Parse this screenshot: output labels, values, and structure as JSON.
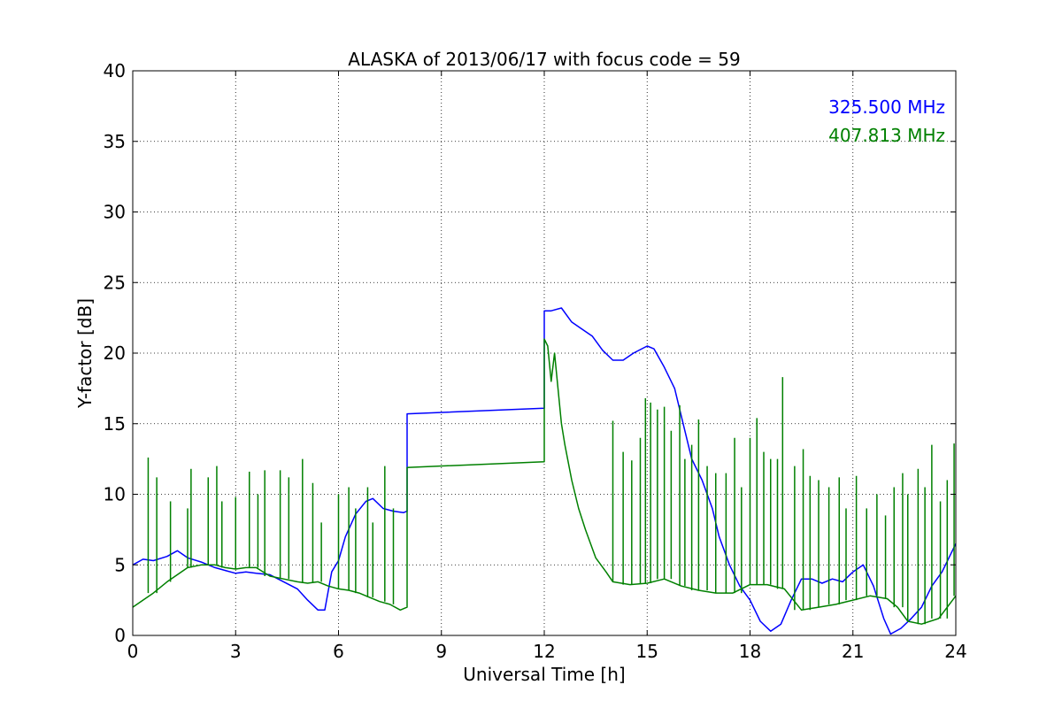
{
  "chart_data": {
    "type": "line",
    "title": "ALASKA of 2013/06/17 with focus code = 59",
    "xlabel": "Universal Time [h]",
    "ylabel": "Y-factor [dB]",
    "xlim": [
      0,
      24
    ],
    "ylim": [
      0,
      40
    ],
    "xticks": [
      0,
      3,
      6,
      9,
      12,
      15,
      18,
      21,
      24
    ],
    "yticks": [
      0,
      5,
      10,
      15,
      20,
      25,
      30,
      35,
      40
    ],
    "grid": true,
    "legend_placement": "top-right",
    "series": [
      {
        "name": "325.500 MHz",
        "color": "#0000ff",
        "x": [
          0,
          0.3,
          0.6,
          1.0,
          1.3,
          1.6,
          2.0,
          2.4,
          2.7,
          3.0,
          3.3,
          3.6,
          4.0,
          4.4,
          4.8,
          5.1,
          5.4,
          5.6,
          5.8,
          6.0,
          6.2,
          6.5,
          6.8,
          7.0,
          7.3,
          7.6,
          7.9,
          8.0,
          8.0,
          12.0,
          12.0,
          12.2,
          12.5,
          12.8,
          13.1,
          13.4,
          13.7,
          14.0,
          14.3,
          14.6,
          15.0,
          15.2,
          15.5,
          15.8,
          16.0,
          16.3,
          16.6,
          16.9,
          17.1,
          17.4,
          17.7,
          18.0,
          18.3,
          18.6,
          18.9,
          19.2,
          19.5,
          19.8,
          20.1,
          20.4,
          20.7,
          21.0,
          21.3,
          21.6,
          21.9,
          22.1,
          22.4,
          22.7,
          23.0,
          23.3,
          23.6,
          24.0
        ],
        "y": [
          5.0,
          5.4,
          5.3,
          5.6,
          6.0,
          5.5,
          5.2,
          4.8,
          4.6,
          4.4,
          4.5,
          4.4,
          4.3,
          3.8,
          3.3,
          2.5,
          1.8,
          1.8,
          4.5,
          5.3,
          7.0,
          8.6,
          9.5,
          9.7,
          9.0,
          8.8,
          8.7,
          8.8,
          15.7,
          16.1,
          23.0,
          23.0,
          23.2,
          22.2,
          21.7,
          21.2,
          20.2,
          19.5,
          19.5,
          20.0,
          20.5,
          20.3,
          19.0,
          17.5,
          15.5,
          12.5,
          11.0,
          9.0,
          7.0,
          5.0,
          3.5,
          2.5,
          1.0,
          0.3,
          0.8,
          2.5,
          4.0,
          4.0,
          3.7,
          4.0,
          3.8,
          4.5,
          5.0,
          3.5,
          1.2,
          0.1,
          0.5,
          1.2,
          2.0,
          3.5,
          4.5,
          6.5
        ]
      },
      {
        "name": "407.813 MHz",
        "color": "#008000",
        "x": [
          0,
          0.3,
          0.6,
          1.0,
          1.3,
          1.6,
          2.0,
          2.4,
          2.7,
          3.0,
          3.3,
          3.6,
          4.0,
          4.4,
          4.8,
          5.1,
          5.4,
          5.7,
          6.0,
          6.3,
          6.6,
          6.9,
          7.2,
          7.5,
          7.8,
          8.0,
          8.0,
          12.0,
          12.0,
          12.1,
          12.2,
          12.3,
          12.4,
          12.5,
          12.6,
          12.8,
          13.0,
          13.2,
          13.5,
          13.8,
          14.0,
          14.5,
          15.0,
          15.5,
          16.0,
          16.5,
          17.0,
          17.5,
          18.0,
          18.5,
          19.0,
          19.5,
          20.0,
          20.5,
          21.0,
          21.5,
          22.0,
          22.3,
          22.6,
          23.0,
          23.5,
          24.0
        ],
        "y": [
          2.0,
          2.5,
          3.0,
          3.8,
          4.3,
          4.8,
          5.0,
          5.0,
          4.8,
          4.7,
          4.8,
          4.8,
          4.2,
          4.0,
          3.8,
          3.7,
          3.8,
          3.5,
          3.3,
          3.2,
          3.0,
          2.7,
          2.4,
          2.2,
          1.8,
          2.0,
          11.9,
          12.3,
          21.0,
          20.5,
          18.0,
          20.0,
          17.5,
          15.0,
          13.5,
          11.0,
          9.0,
          7.5,
          5.5,
          4.5,
          3.8,
          3.6,
          3.7,
          4.0,
          3.5,
          3.2,
          3.0,
          3.0,
          3.6,
          3.6,
          3.3,
          1.8,
          2.0,
          2.2,
          2.5,
          2.8,
          2.6,
          2.0,
          1.0,
          0.8,
          1.2,
          2.8
        ],
        "spikes": [
          {
            "x": 0.45,
            "y": 12.6
          },
          {
            "x": 0.7,
            "y": 11.2
          },
          {
            "x": 1.1,
            "y": 9.5
          },
          {
            "x": 1.6,
            "y": 9.0
          },
          {
            "x": 1.7,
            "y": 11.8
          },
          {
            "x": 2.2,
            "y": 11.2
          },
          {
            "x": 2.45,
            "y": 12.0
          },
          {
            "x": 2.6,
            "y": 9.5
          },
          {
            "x": 3.0,
            "y": 9.8
          },
          {
            "x": 3.4,
            "y": 11.6
          },
          {
            "x": 3.65,
            "y": 10.0
          },
          {
            "x": 3.85,
            "y": 11.7
          },
          {
            "x": 4.3,
            "y": 11.7
          },
          {
            "x": 4.55,
            "y": 11.2
          },
          {
            "x": 4.95,
            "y": 12.5
          },
          {
            "x": 5.25,
            "y": 10.8
          },
          {
            "x": 5.5,
            "y": 8.0
          },
          {
            "x": 6.0,
            "y": 10.0
          },
          {
            "x": 6.3,
            "y": 10.5
          },
          {
            "x": 6.5,
            "y": 9.0
          },
          {
            "x": 6.85,
            "y": 10.5
          },
          {
            "x": 7.0,
            "y": 8.0
          },
          {
            "x": 7.35,
            "y": 12.0
          },
          {
            "x": 7.6,
            "y": 9.0
          },
          {
            "x": 14.0,
            "y": 15.2
          },
          {
            "x": 14.3,
            "y": 13.0
          },
          {
            "x": 14.55,
            "y": 12.4
          },
          {
            "x": 14.8,
            "y": 14.0
          },
          {
            "x": 14.95,
            "y": 16.8
          },
          {
            "x": 15.1,
            "y": 16.5
          },
          {
            "x": 15.3,
            "y": 16.0
          },
          {
            "x": 15.5,
            "y": 16.2
          },
          {
            "x": 15.7,
            "y": 14.5
          },
          {
            "x": 15.95,
            "y": 16.3
          },
          {
            "x": 16.1,
            "y": 12.5
          },
          {
            "x": 16.3,
            "y": 13.5
          },
          {
            "x": 16.5,
            "y": 15.3
          },
          {
            "x": 16.75,
            "y": 12.0
          },
          {
            "x": 17.0,
            "y": 11.5
          },
          {
            "x": 17.3,
            "y": 11.5
          },
          {
            "x": 17.55,
            "y": 14.0
          },
          {
            "x": 17.75,
            "y": 10.5
          },
          {
            "x": 18.0,
            "y": 14.0
          },
          {
            "x": 18.2,
            "y": 15.4
          },
          {
            "x": 18.4,
            "y": 13.0
          },
          {
            "x": 18.6,
            "y": 12.5
          },
          {
            "x": 18.8,
            "y": 12.5
          },
          {
            "x": 18.95,
            "y": 18.3
          },
          {
            "x": 19.3,
            "y": 12.0
          },
          {
            "x": 19.55,
            "y": 13.2
          },
          {
            "x": 19.75,
            "y": 11.3
          },
          {
            "x": 20.0,
            "y": 11.0
          },
          {
            "x": 20.3,
            "y": 10.5
          },
          {
            "x": 20.6,
            "y": 11.2
          },
          {
            "x": 20.8,
            "y": 9.0
          },
          {
            "x": 21.1,
            "y": 11.3
          },
          {
            "x": 21.4,
            "y": 9.0
          },
          {
            "x": 21.7,
            "y": 10.0
          },
          {
            "x": 21.95,
            "y": 8.5
          },
          {
            "x": 22.2,
            "y": 10.5
          },
          {
            "x": 22.45,
            "y": 11.5
          },
          {
            "x": 22.6,
            "y": 10.0
          },
          {
            "x": 22.9,
            "y": 11.8
          },
          {
            "x": 23.1,
            "y": 10.5
          },
          {
            "x": 23.3,
            "y": 13.5
          },
          {
            "x": 23.55,
            "y": 9.5
          },
          {
            "x": 23.75,
            "y": 11.0
          },
          {
            "x": 23.95,
            "y": 13.6
          }
        ]
      }
    ]
  }
}
